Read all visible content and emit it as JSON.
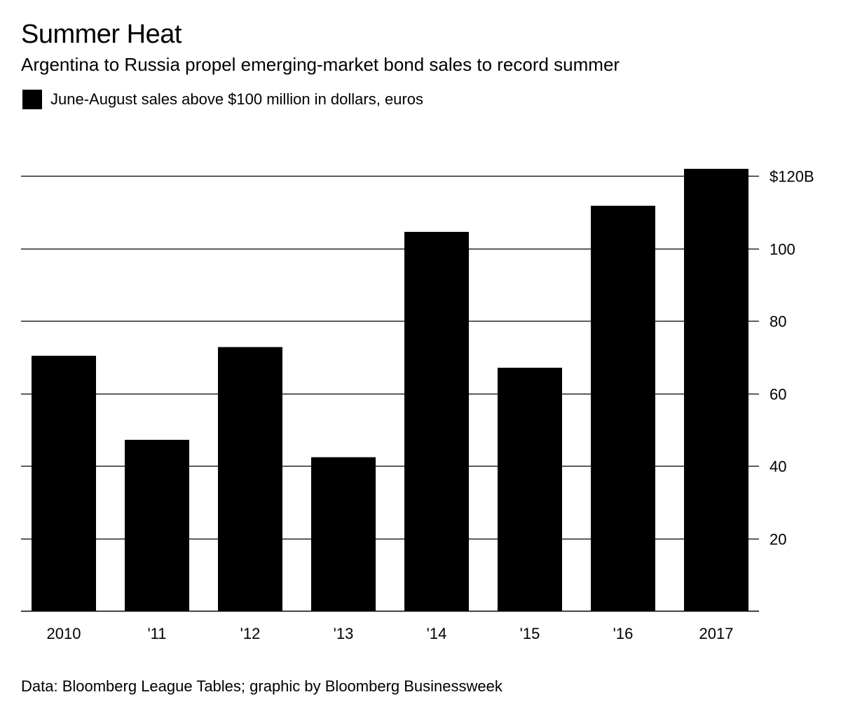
{
  "chart_data": {
    "type": "bar",
    "title": "Summer Heat",
    "subtitle": "Argentina to Russia propel emerging-market bond sales to record summer",
    "legend": {
      "placement": "top-left",
      "entries": [
        {
          "label": "June-August sales above $100 million in dollars, euros",
          "color": "#000000"
        }
      ]
    },
    "categories": [
      "2010",
      "'11",
      "'12",
      "'13",
      "'14",
      "'15",
      "'16",
      "2017"
    ],
    "series": [
      {
        "name": "June-August sales above $100 million in dollars, euros",
        "values": [
          70.4,
          47.2,
          72.8,
          42.4,
          104.6,
          67.1,
          111.8,
          122
        ]
      }
    ],
    "ylim": [
      0,
      122
    ],
    "yticks": [
      20,
      40,
      60,
      80,
      100,
      120
    ],
    "ytick_labels": [
      "20",
      "40",
      "60",
      "80",
      "100",
      "$120B"
    ],
    "y_axis_side": "right",
    "grid": true,
    "source": "Data: Bloomberg League Tables; graphic by Bloomberg Businessweek"
  }
}
